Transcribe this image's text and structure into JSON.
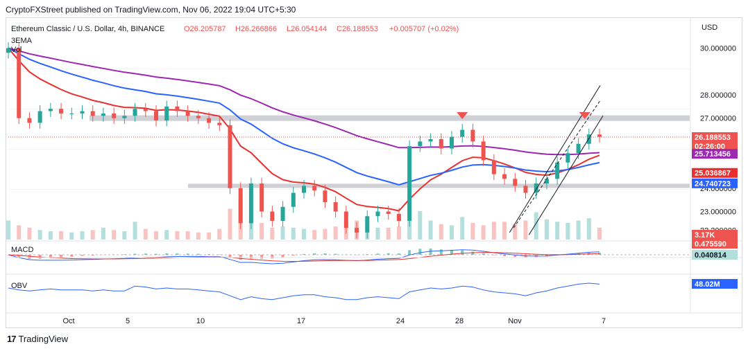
{
  "header": {
    "published": "CryptoFXStreet published on TradingView.com, Nov 06, 2022 19:04 UTC+5:30"
  },
  "legend": {
    "symbol": "Ethereum Classic / U.S. Dollar, 4h, BINANCE",
    "open": "O26.205787",
    "high": "H26.266866",
    "low": "L26.054144",
    "close": "C26.188553",
    "change": "+0.005707 (+0.02%)",
    "vol": "Vol",
    "ema": "3EMA"
  },
  "macd_label": "MACD",
  "obv_label": "OBV",
  "footer": {
    "brand": "TradingView",
    "logo": "17"
  },
  "colors": {
    "up": "#26a69a",
    "down": "#ef5350",
    "ema_red": "#e8302f",
    "ema_blue": "#2962ff",
    "ema_purple": "#9c27b0",
    "zone": "#c9cbd0",
    "channel": "#131722",
    "obv": "#2962ff"
  },
  "chart_data": {
    "type": "candlestick",
    "title": "Ethereum Classic / U.S. Dollar, 4h, BINANCE",
    "y_axis_label": "USD",
    "y_ticks": [
      "30.000000",
      "28.000000",
      "27.000000",
      "24.000000",
      "23.000000",
      "22.200000"
    ],
    "x_ticks": [
      "Oct",
      "5",
      "10",
      "17",
      "24",
      "28",
      "Nov",
      "7"
    ],
    "price_tags": {
      "last": "26.188553",
      "countdown": "02:26:00",
      "ema_purple": "25.713456",
      "ema_red": "25.036867",
      "ema_blue": "24.740723",
      "volume": "3.17K",
      "macd": "0.475590",
      "signal": "0.040814",
      "obv": "48.02M"
    },
    "resistance_zone": 27.0,
    "support_zone": 24.1,
    "series_close": [
      30.0,
      27.0,
      26.8,
      27.3,
      27.4,
      27.2,
      27.2,
      27.3,
      27.1,
      27.2,
      27.0,
      27.1,
      27.4,
      27.3,
      26.9,
      27.5,
      27.3,
      27.1,
      27.0,
      26.8,
      26.7,
      24.0,
      22.5,
      24.2,
      23.0,
      22.6,
      23.2,
      23.8,
      24.1,
      23.9,
      23.4,
      23.0,
      22.3,
      22.1,
      22.8,
      23.0,
      22.9,
      22.6,
      25.8,
      26.0,
      26.1,
      25.7,
      26.2,
      26.5,
      26.0,
      25.2,
      24.6,
      24.4,
      24.1,
      23.8,
      24.2,
      24.4,
      25.1,
      25.5,
      25.9,
      26.3,
      26.2
    ],
    "series_volume": [
      1.6,
      1.2,
      1.0,
      0.8,
      0.7,
      0.7,
      0.6,
      0.7,
      0.8,
      1.0,
      0.8,
      0.7,
      1.5,
      0.9,
      0.7,
      0.8,
      0.7,
      0.7,
      0.6,
      0.6,
      0.9,
      2.6,
      3.4,
      2.1,
      1.4,
      1.0,
      1.1,
      1.0,
      0.9,
      0.8,
      0.9,
      1.1,
      1.5,
      1.6,
      1.2,
      1.0,
      1.0,
      1.1,
      3.3,
      2.4,
      1.6,
      1.3,
      1.2,
      1.9,
      1.4,
      1.2,
      1.5,
      1.5,
      1.3,
      1.6,
      2.3,
      1.7,
      1.5,
      1.4,
      1.6,
      1.8,
      1.0
    ],
    "series_obv": [
      0,
      -2,
      -3,
      -2,
      -1,
      -2,
      -2,
      -2,
      -3,
      -2,
      -3,
      -3,
      2,
      1,
      -1,
      0,
      -1,
      -1,
      -2,
      -3,
      -4,
      -8,
      -12,
      -9,
      -11,
      -12,
      -10,
      -8,
      -7,
      -7,
      -9,
      -10,
      -12,
      -12,
      -10,
      -9,
      -10,
      -11,
      -4,
      -2,
      0,
      -1,
      0,
      2,
      1,
      -2,
      -4,
      -5,
      -6,
      -8,
      -5,
      -3,
      0,
      2,
      4,
      5,
      4
    ]
  }
}
